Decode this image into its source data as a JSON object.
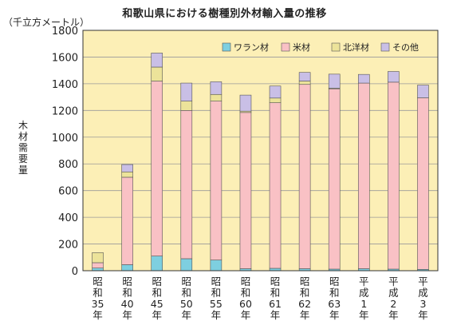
{
  "chart_data": {
    "type": "bar",
    "stacked": true,
    "title": "和歌山県における樹種別外材輸入量の推移",
    "unit_label": "（千立方メートル）",
    "ylabel": "木材需要量",
    "xlabel": "",
    "ylim": [
      0,
      1800
    ],
    "yticks": [
      0,
      200,
      400,
      600,
      800,
      1000,
      1200,
      1400,
      1600,
      1800
    ],
    "categories": [
      [
        "昭",
        "和",
        "35",
        "年"
      ],
      [
        "昭",
        "和",
        "40",
        "年"
      ],
      [
        "昭",
        "和",
        "45",
        "年"
      ],
      [
        "昭",
        "和",
        "50",
        "年"
      ],
      [
        "昭",
        "和",
        "55",
        "年"
      ],
      [
        "昭",
        "和",
        "60",
        "年"
      ],
      [
        "昭",
        "和",
        "61",
        "年"
      ],
      [
        "昭",
        "和",
        "62",
        "年"
      ],
      [
        "昭",
        "和",
        "63",
        "年"
      ],
      [
        "平",
        "成",
        "1",
        "年"
      ],
      [
        "平",
        "成",
        "2",
        "年"
      ],
      [
        "平",
        "成",
        "3",
        "年"
      ]
    ],
    "series": [
      {
        "name": "ワラン材",
        "color": "#7ecfe0",
        "values": [
          20,
          45,
          110,
          90,
          80,
          15,
          18,
          15,
          12,
          15,
          12,
          10
        ]
      },
      {
        "name": "米材",
        "color": "#f9c1c5",
        "values": [
          40,
          655,
          1310,
          1110,
          1190,
          1170,
          1240,
          1380,
          1350,
          1390,
          1400,
          1285
        ]
      },
      {
        "name": "北洋材",
        "color": "#ece39a",
        "values": [
          75,
          40,
          105,
          70,
          50,
          10,
          35,
          25,
          5,
          0,
          0,
          0
        ]
      },
      {
        "name": "その他",
        "color": "#c9bfe6",
        "values": [
          0,
          55,
          105,
          135,
          95,
          120,
          90,
          65,
          105,
          65,
          80,
          95
        ]
      }
    ],
    "legend_position": "top-right",
    "grid": "horizontal",
    "plot_background": "#fcefb6"
  }
}
